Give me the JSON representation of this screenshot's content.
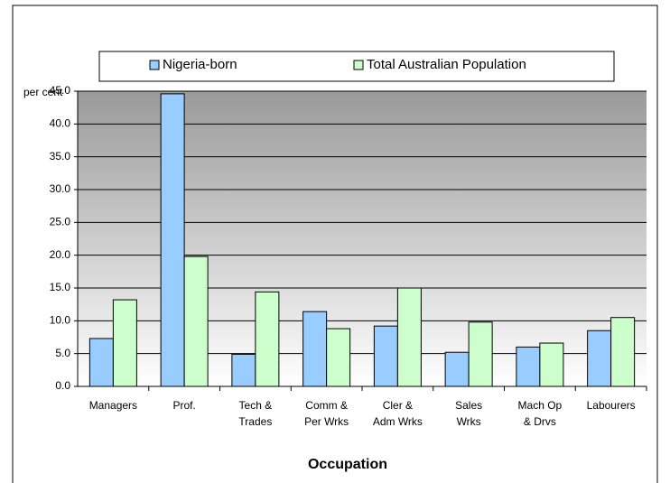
{
  "chart_data": {
    "type": "bar",
    "y_axis_label": "per cent",
    "x_axis_label": "Occupation",
    "categories": [
      "Managers",
      "Prof.",
      "Tech &\nTrades",
      "Comm &\nPer Wrks",
      "Cler &\nAdm Wrks",
      "Sales\nWrks",
      "Mach Op\n& Drvs",
      "Labourers"
    ],
    "series": [
      {
        "name": "Nigeria-born",
        "color": "#99ccff",
        "values": [
          7.3,
          44.6,
          4.9,
          11.4,
          9.2,
          5.2,
          6.0,
          8.5
        ]
      },
      {
        "name": "Total Australian Population",
        "color": "#ccffcc",
        "values": [
          13.2,
          19.8,
          14.4,
          8.8,
          15.0,
          9.8,
          6.6,
          10.5
        ]
      }
    ],
    "ylim": [
      0,
      45
    ],
    "yticks": [
      {
        "value": 0,
        "label": "0.0"
      },
      {
        "value": 5,
        "label": "5.0"
      },
      {
        "value": 10,
        "label": "10.0"
      },
      {
        "value": 15,
        "label": "15.0"
      },
      {
        "value": 20,
        "label": "20.0"
      },
      {
        "value": 25,
        "label": "25.0"
      },
      {
        "value": 30,
        "label": "30.0"
      },
      {
        "value": 35,
        "label": "35.0"
      },
      {
        "value": 40,
        "label": "40.0"
      },
      {
        "value": 45,
        "label": "45.0"
      }
    ],
    "grid": true,
    "legend": "top"
  }
}
